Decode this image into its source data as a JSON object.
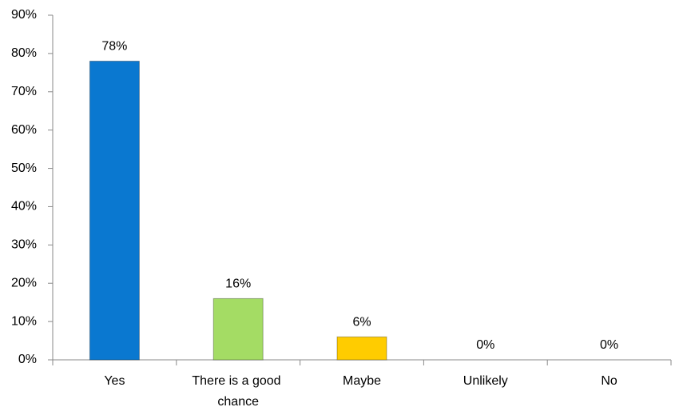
{
  "chart_data": {
    "type": "bar",
    "categories": [
      "Yes",
      "There is a good chance",
      "Maybe",
      "Unlikely",
      "No"
    ],
    "values": [
      78,
      16,
      6,
      0,
      0
    ],
    "value_labels": [
      "78%",
      "16%",
      "6%",
      "0%",
      "0%"
    ],
    "colors": [
      "#0a78d0",
      "#a4dc64",
      "#ffcc00",
      null,
      null
    ],
    "ylim": [
      0,
      90
    ],
    "yticks": [
      {
        "value": 0,
        "label": "0%"
      },
      {
        "value": 10,
        "label": "10%"
      },
      {
        "value": 20,
        "label": "20%"
      },
      {
        "value": 30,
        "label": "30%"
      },
      {
        "value": 40,
        "label": "40%"
      },
      {
        "value": 50,
        "label": "50%"
      },
      {
        "value": 60,
        "label": "60%"
      },
      {
        "value": 70,
        "label": "70%"
      },
      {
        "value": 80,
        "label": "80%"
      },
      {
        "value": 90,
        "label": "90%"
      }
    ],
    "grid": false
  }
}
